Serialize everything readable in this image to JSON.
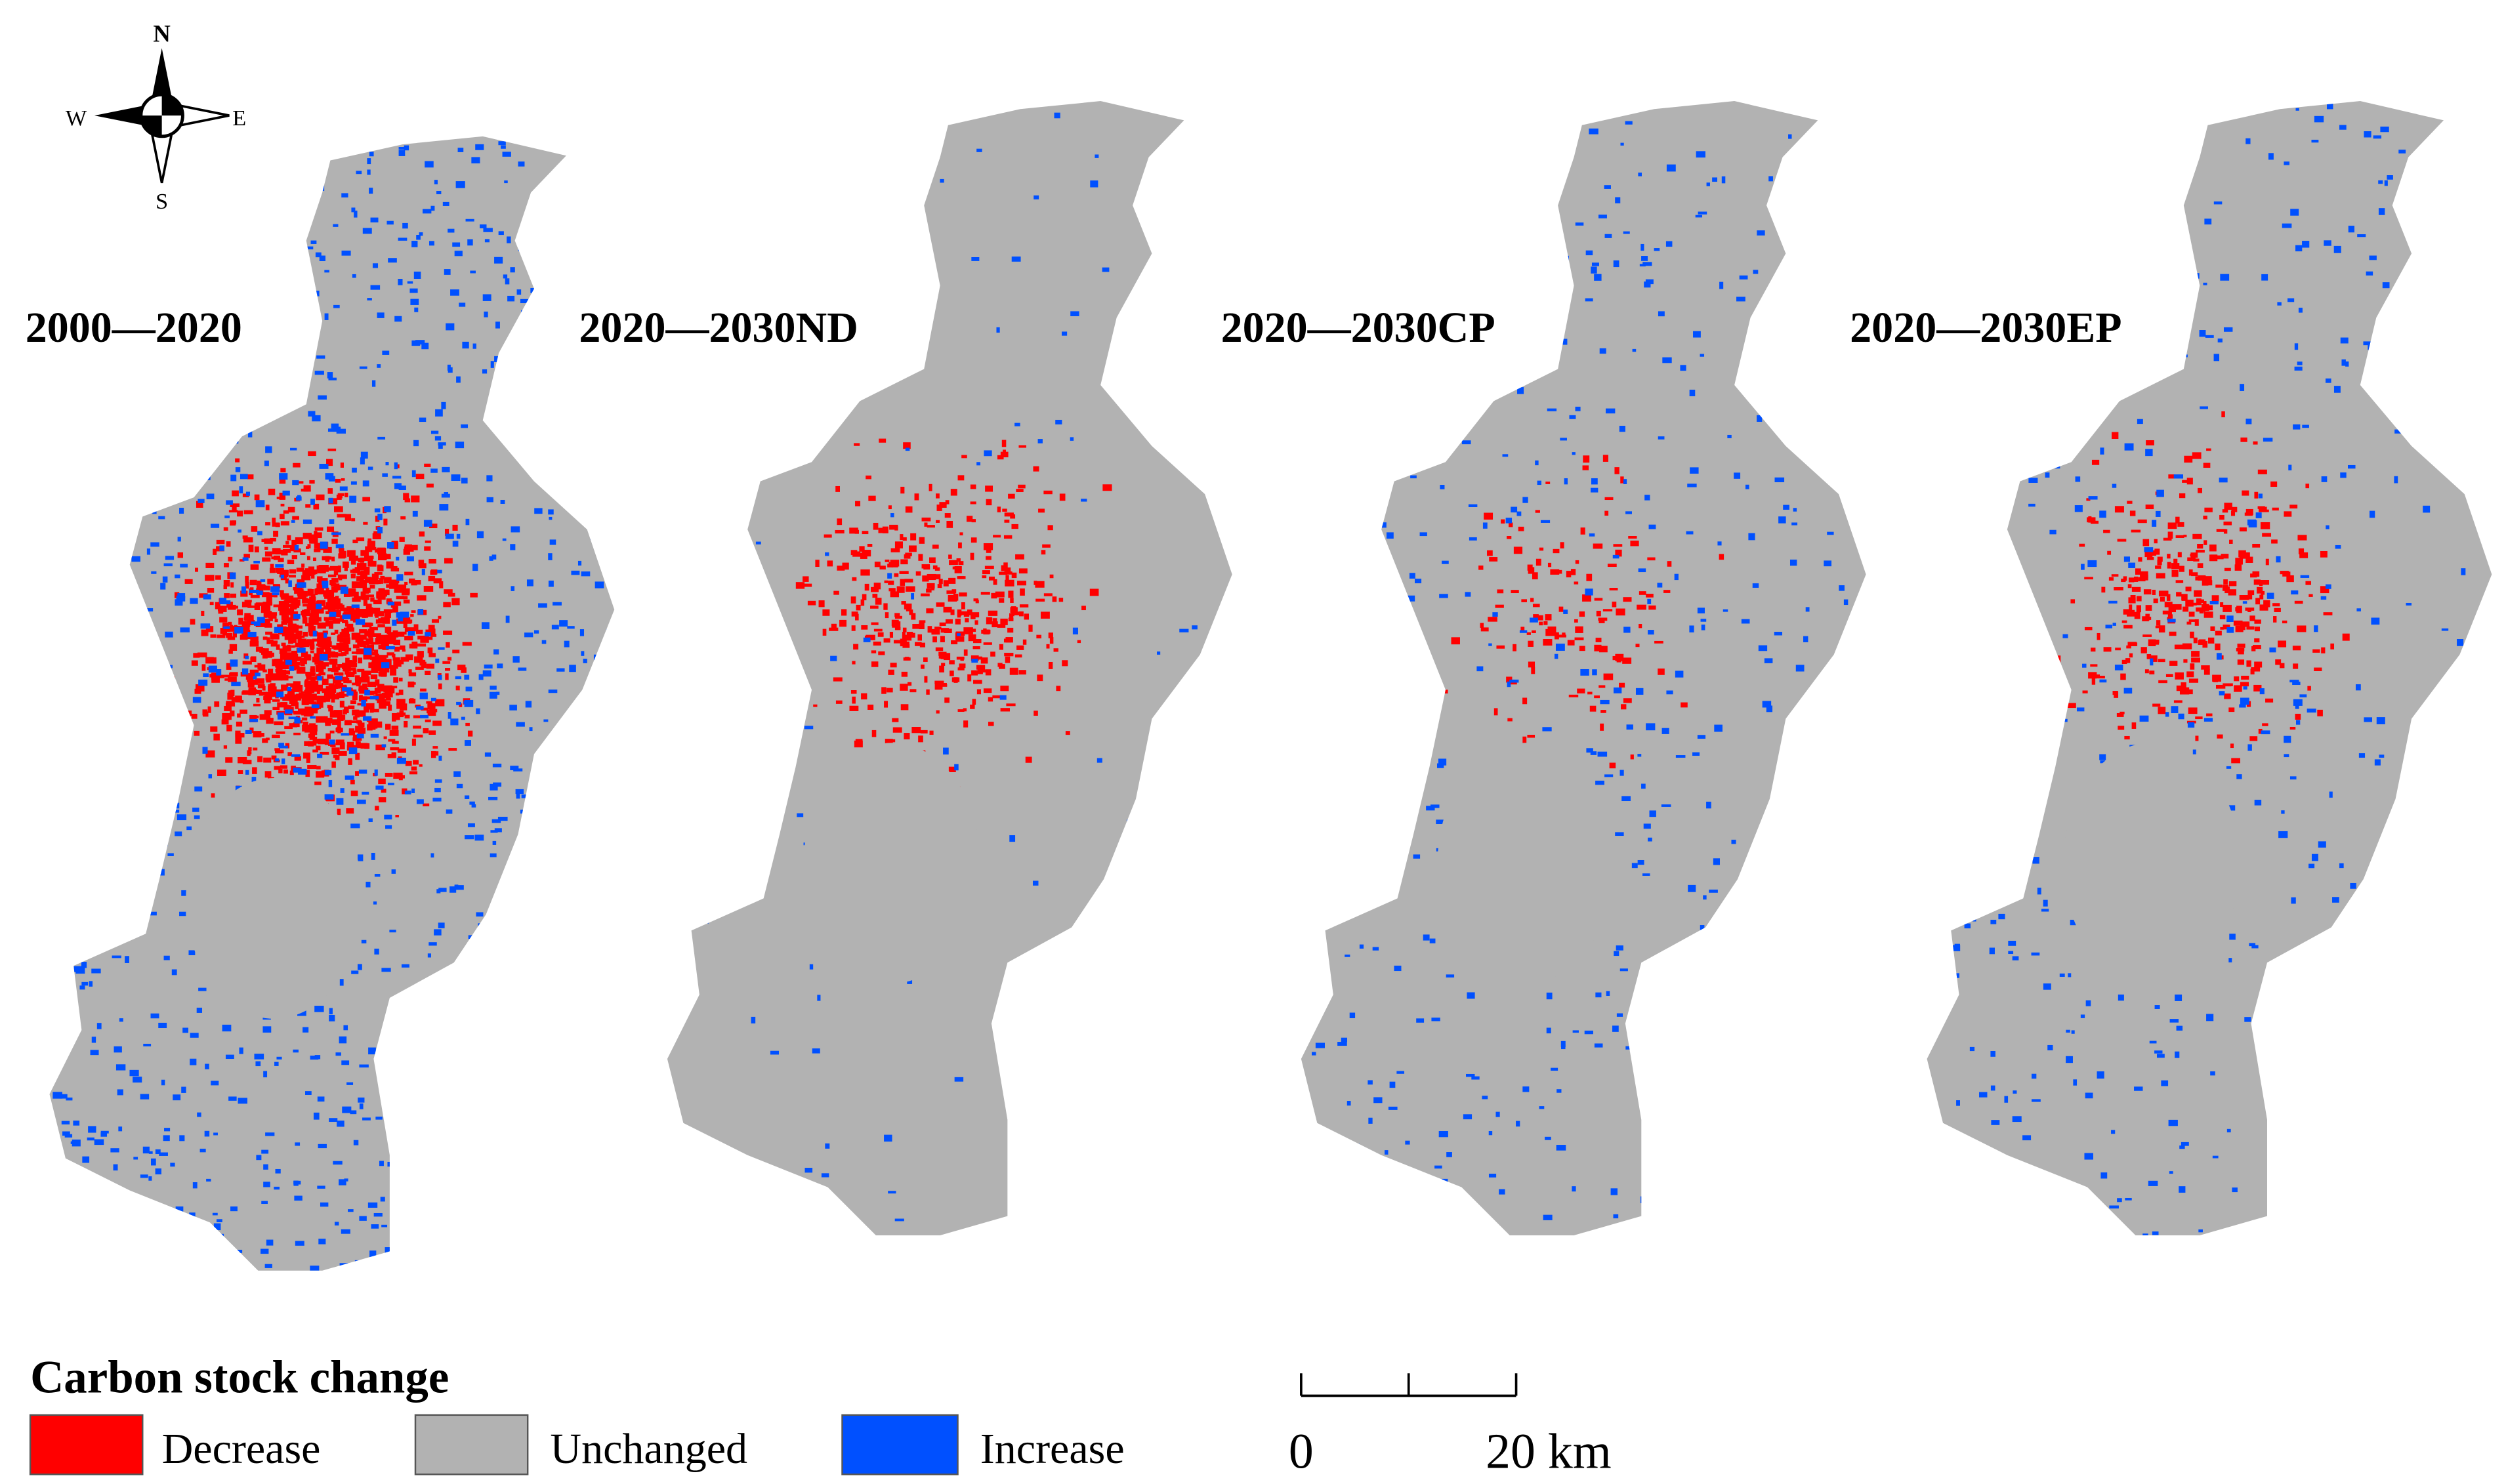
{
  "compass": {
    "north": "N",
    "south": "S",
    "east": "E",
    "west": "W"
  },
  "panels": [
    {
      "title": "2000—2020"
    },
    {
      "title": "2020—2030ND"
    },
    {
      "title": "2020—2030CP"
    },
    {
      "title": "2020—2030EP"
    }
  ],
  "legend": {
    "title": "Carbon stock change",
    "items": [
      {
        "label": "Decrease",
        "color": "#ff0000"
      },
      {
        "label": "Unchanged",
        "color": "#b2b2b2"
      },
      {
        "label": "Increase",
        "color": "#0050ff"
      }
    ]
  },
  "scale_bar": {
    "labels": [
      "0",
      "20 km"
    ]
  }
}
